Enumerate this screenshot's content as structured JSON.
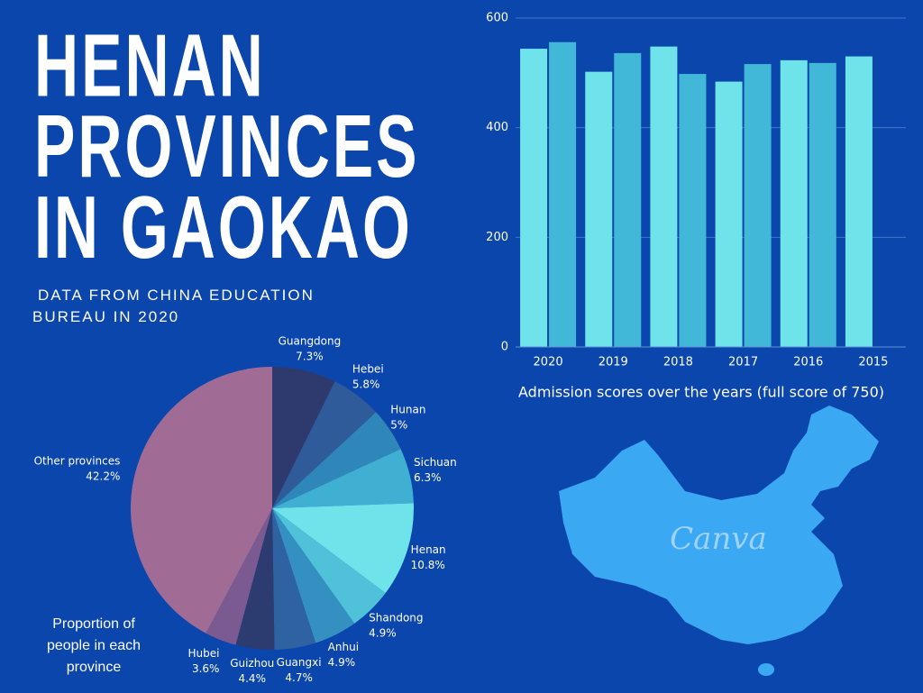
{
  "header": {
    "title": "HENAN PROVINCES IN GAOKAO",
    "subtitle": "DATA FROM CHINA EDUCATION BUREAU IN 2020",
    "watermark": "Canva"
  },
  "chart_data": [
    {
      "type": "bar",
      "xlabel": "Admission scores over the years (full score of 750)",
      "categories": [
        "2020",
        "2019",
        "2018",
        "2017",
        "2016",
        "2015"
      ],
      "series": [
        {
          "color": "#6ee3ea",
          "values": [
            544,
            502,
            548,
            484,
            523,
            530
          ]
        },
        {
          "color": "#41b8d8",
          "values": [
            556,
            536,
            498,
            516,
            518,
            null
          ]
        }
      ],
      "ylim": [
        0,
        600
      ],
      "yticks": [
        0,
        200,
        400,
        600
      ],
      "grid": true
    },
    {
      "type": "pie",
      "title": "Proportion of people in each province",
      "categories": [
        "Guangdong",
        "Hebei",
        "Hunan",
        "Sichuan",
        "Henan",
        "Shandong",
        "Anhui",
        "Guangxi",
        "Guizhou",
        "Hubei",
        "Other provinces"
      ],
      "values": [
        7.3,
        5.8,
        5,
        6.3,
        10.8,
        4.9,
        4.9,
        4.7,
        4.4,
        3.6,
        42.2
      ],
      "value_labels": [
        "7.3%",
        "5.8%",
        "5%",
        "6.3%",
        "10.8%",
        "4.9%",
        "4.9%",
        "4.7%",
        "4.4%",
        "3.6%",
        "42.2%"
      ],
      "colors": [
        "#2e3a6e",
        "#2f5b9a",
        "#2f86b8",
        "#3fb0d2",
        "#6ee3ea",
        "#4fc2da",
        "#3490c0",
        "#2f62a0",
        "#2c3b70",
        "#7a5a90",
        "#a06c96"
      ]
    }
  ]
}
